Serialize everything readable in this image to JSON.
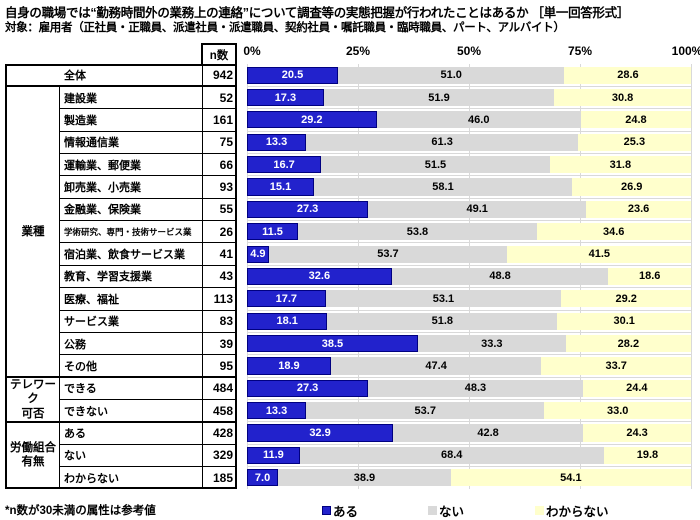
{
  "title": "自身の職場では“勤務時間外の業務上の連絡”について調査等の実態把握が行われたことはあるか ［単一回答形式］",
  "subtitle": "対象：雇用者（正社員・正職員、派遣社員・派遣職員、契約社員・嘱託職員・臨時職員、パート、アルバイト）",
  "header": {
    "n_label": "n数"
  },
  "axis": {
    "ticks": [
      "0%",
      "25%",
      "50%",
      "75%",
      "100%"
    ]
  },
  "legend": [
    {
      "label": "ある",
      "color": "#2222CC",
      "border": "#000080"
    },
    {
      "label": "ない",
      "color": "#D9D9D9",
      "border": ""
    },
    {
      "label": "わからない",
      "color": "#FFFFCC",
      "border": ""
    }
  ],
  "footnote": "*n数が30未満の属性は参考値",
  "colors": {
    "bar_aru": "#2222CC",
    "bar_aru_border": "#000080",
    "bar_aru_text": "#FFFFFF",
    "bar_nai": "#D9D9D9",
    "bar_wakaranai": "#FFFFCC",
    "grid": "#D9D9D9",
    "table_border": "#000000"
  },
  "chart_data": {
    "type": "bar",
    "orientation": "horizontal-stacked",
    "xlim": [
      0,
      100
    ],
    "x_ticks": [
      0,
      25,
      50,
      75,
      100
    ],
    "series_names": [
      "ある",
      "ない",
      "わからない"
    ],
    "legend_position": "bottom",
    "groups": [
      {
        "label": "",
        "rows": [
          {
            "label": "全体",
            "n": 942,
            "values": [
              20.5,
              51.0,
              28.6
            ]
          }
        ]
      },
      {
        "label": "業種",
        "rows": [
          {
            "label": "建設業",
            "n": 52,
            "values": [
              17.3,
              51.9,
              30.8
            ]
          },
          {
            "label": "製造業",
            "n": 161,
            "values": [
              29.2,
              46.0,
              24.8
            ]
          },
          {
            "label": "情報通信業",
            "n": 75,
            "values": [
              13.3,
              61.3,
              25.3
            ]
          },
          {
            "label": "運輸業、郵便業",
            "n": 66,
            "values": [
              16.7,
              51.5,
              31.8
            ]
          },
          {
            "label": "卸売業、小売業",
            "n": 93,
            "values": [
              15.1,
              58.1,
              26.9
            ]
          },
          {
            "label": "金融業、保険業",
            "n": 55,
            "values": [
              27.3,
              49.1,
              23.6
            ]
          },
          {
            "label": "学術研究、専門・技術サービス業",
            "n": 26,
            "values": [
              11.5,
              53.8,
              34.6
            ]
          },
          {
            "label": "宿泊業、飲食サービス業",
            "n": 41,
            "values": [
              4.9,
              53.7,
              41.5
            ]
          },
          {
            "label": "教育、学習支援業",
            "n": 43,
            "values": [
              32.6,
              48.8,
              18.6
            ]
          },
          {
            "label": "医療、福祉",
            "n": 113,
            "values": [
              17.7,
              53.1,
              29.2
            ]
          },
          {
            "label": "サービス業",
            "n": 83,
            "values": [
              18.1,
              51.8,
              30.1
            ]
          },
          {
            "label": "公務",
            "n": 39,
            "values": [
              38.5,
              33.3,
              28.2
            ]
          },
          {
            "label": "その他",
            "n": 95,
            "values": [
              18.9,
              47.4,
              33.7
            ]
          }
        ]
      },
      {
        "label": "テレワーク\n可否",
        "rows": [
          {
            "label": "できる",
            "n": 484,
            "values": [
              27.3,
              48.3,
              24.4
            ]
          },
          {
            "label": "できない",
            "n": 458,
            "values": [
              13.3,
              53.7,
              33.0
            ]
          }
        ]
      },
      {
        "label": "労働組合\n有無",
        "rows": [
          {
            "label": "ある",
            "n": 428,
            "values": [
              32.9,
              42.8,
              24.3
            ]
          },
          {
            "label": "ない",
            "n": 329,
            "values": [
              11.9,
              68.4,
              19.8
            ]
          },
          {
            "label": "わからない",
            "n": 185,
            "values": [
              7.0,
              38.9,
              54.1
            ]
          }
        ]
      }
    ]
  }
}
